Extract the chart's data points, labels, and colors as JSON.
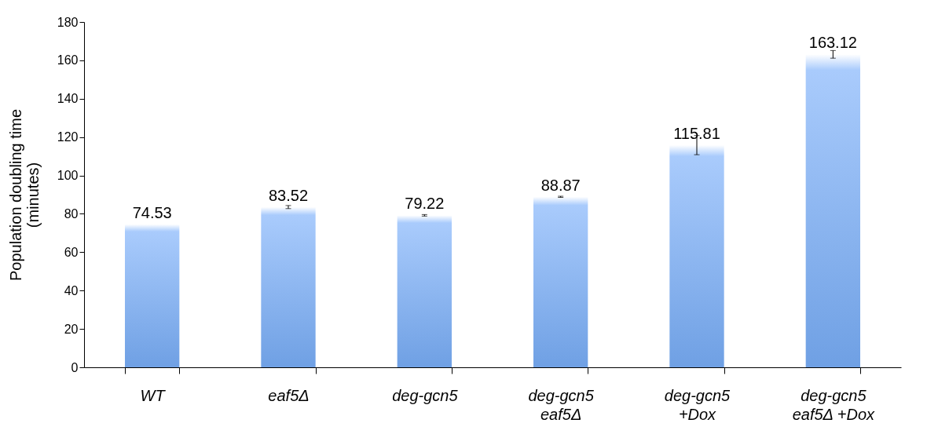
{
  "chart_data": {
    "type": "bar",
    "ylabel": "Population doubling time\n(minutes)",
    "categories": [
      "WT",
      "eaf5Δ",
      "deg-gcn5",
      "deg-gcn5\neaf5Δ",
      "deg-gcn5\n+Dox",
      "deg-gcn5\neaf5Δ +Dox"
    ],
    "values": [
      74.53,
      83.52,
      79.22,
      88.87,
      115.81,
      163.12
    ],
    "errors": [
      null,
      0.8,
      0.4,
      0.3,
      5,
      2
    ],
    "color": "#6fa0e4",
    "data_labels": true,
    "grid": false,
    "ylim": [
      0,
      180
    ],
    "yticks": [
      0,
      20,
      40,
      60,
      80,
      100,
      120,
      140,
      160,
      180
    ]
  }
}
